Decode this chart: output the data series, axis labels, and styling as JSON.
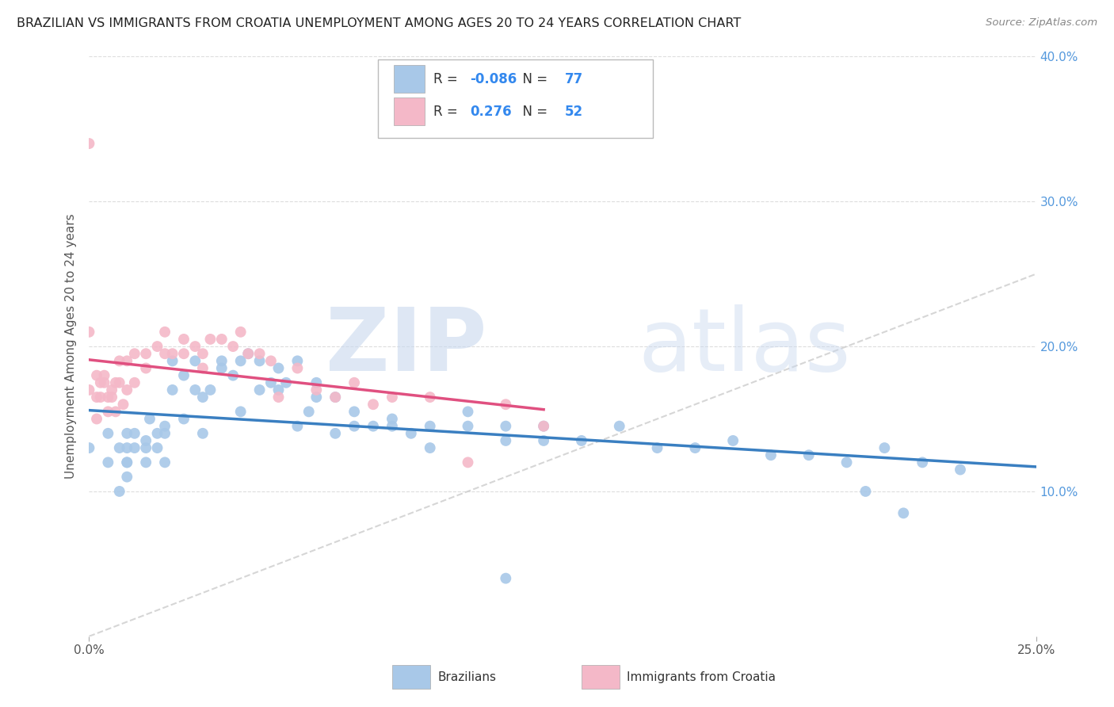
{
  "title": "BRAZILIAN VS IMMIGRANTS FROM CROATIA UNEMPLOYMENT AMONG AGES 20 TO 24 YEARS CORRELATION CHART",
  "source": "Source: ZipAtlas.com",
  "ylabel": "Unemployment Among Ages 20 to 24 years",
  "xlim": [
    0.0,
    0.25
  ],
  "ylim": [
    0.0,
    0.4
  ],
  "xtick_positions": [
    0.0,
    0.25
  ],
  "xtick_labels": [
    "0.0%",
    "25.0%"
  ],
  "ytick_positions": [
    0.1,
    0.2,
    0.3,
    0.4
  ],
  "ytick_labels_right": [
    "10.0%",
    "20.0%",
    "30.0%",
    "40.0%"
  ],
  "grid_yticks": [
    0.1,
    0.2,
    0.3,
    0.4
  ],
  "legend_blue_label": "Brazilians",
  "legend_pink_label": "Immigrants from Croatia",
  "R_blue": -0.086,
  "N_blue": 77,
  "R_pink": 0.276,
  "N_pink": 52,
  "blue_color": "#a8c8e8",
  "pink_color": "#f4b8c8",
  "blue_line_color": "#3a7fc1",
  "pink_line_color": "#e05080",
  "background_color": "#ffffff",
  "grid_color": "#dddddd",
  "blue_x": [
    0.0,
    0.005,
    0.005,
    0.008,
    0.008,
    0.01,
    0.01,
    0.01,
    0.01,
    0.01,
    0.012,
    0.012,
    0.015,
    0.015,
    0.015,
    0.016,
    0.018,
    0.018,
    0.02,
    0.02,
    0.02,
    0.022,
    0.022,
    0.025,
    0.025,
    0.028,
    0.028,
    0.03,
    0.03,
    0.032,
    0.035,
    0.035,
    0.038,
    0.04,
    0.04,
    0.042,
    0.045,
    0.045,
    0.048,
    0.05,
    0.05,
    0.052,
    0.055,
    0.055,
    0.058,
    0.06,
    0.06,
    0.065,
    0.065,
    0.07,
    0.07,
    0.075,
    0.08,
    0.08,
    0.085,
    0.09,
    0.09,
    0.1,
    0.1,
    0.11,
    0.11,
    0.12,
    0.12,
    0.13,
    0.14,
    0.15,
    0.16,
    0.17,
    0.18,
    0.19,
    0.2,
    0.21,
    0.22,
    0.23,
    0.205,
    0.215,
    0.11
  ],
  "blue_y": [
    0.13,
    0.12,
    0.14,
    0.1,
    0.13,
    0.12,
    0.13,
    0.14,
    0.11,
    0.12,
    0.13,
    0.14,
    0.13,
    0.12,
    0.135,
    0.15,
    0.13,
    0.14,
    0.12,
    0.14,
    0.145,
    0.17,
    0.19,
    0.18,
    0.15,
    0.19,
    0.17,
    0.165,
    0.14,
    0.17,
    0.19,
    0.185,
    0.18,
    0.19,
    0.155,
    0.195,
    0.19,
    0.17,
    0.175,
    0.17,
    0.185,
    0.175,
    0.19,
    0.145,
    0.155,
    0.165,
    0.175,
    0.165,
    0.14,
    0.155,
    0.145,
    0.145,
    0.145,
    0.15,
    0.14,
    0.145,
    0.13,
    0.155,
    0.145,
    0.145,
    0.135,
    0.145,
    0.135,
    0.135,
    0.145,
    0.13,
    0.13,
    0.135,
    0.125,
    0.125,
    0.12,
    0.13,
    0.12,
    0.115,
    0.1,
    0.085,
    0.04
  ],
  "pink_x": [
    0.0,
    0.0,
    0.0,
    0.002,
    0.002,
    0.002,
    0.003,
    0.003,
    0.004,
    0.004,
    0.005,
    0.005,
    0.006,
    0.006,
    0.007,
    0.007,
    0.008,
    0.008,
    0.009,
    0.01,
    0.01,
    0.012,
    0.012,
    0.015,
    0.015,
    0.018,
    0.02,
    0.02,
    0.022,
    0.025,
    0.025,
    0.028,
    0.03,
    0.03,
    0.032,
    0.035,
    0.038,
    0.04,
    0.042,
    0.045,
    0.048,
    0.05,
    0.055,
    0.06,
    0.065,
    0.07,
    0.075,
    0.08,
    0.09,
    0.1,
    0.11,
    0.12
  ],
  "pink_y": [
    0.34,
    0.17,
    0.21,
    0.15,
    0.165,
    0.18,
    0.165,
    0.175,
    0.175,
    0.18,
    0.155,
    0.165,
    0.165,
    0.17,
    0.155,
    0.175,
    0.175,
    0.19,
    0.16,
    0.17,
    0.19,
    0.195,
    0.175,
    0.195,
    0.185,
    0.2,
    0.195,
    0.21,
    0.195,
    0.205,
    0.195,
    0.2,
    0.195,
    0.185,
    0.205,
    0.205,
    0.2,
    0.21,
    0.195,
    0.195,
    0.19,
    0.165,
    0.185,
    0.17,
    0.165,
    0.175,
    0.16,
    0.165,
    0.165,
    0.12,
    0.16,
    0.145
  ]
}
